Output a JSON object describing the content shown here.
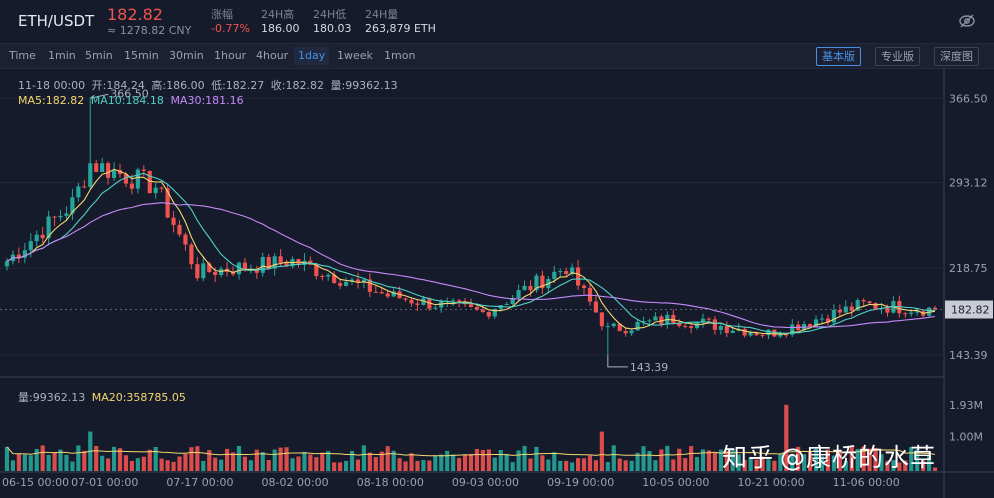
{
  "header": {
    "pair": "ETH/USDT",
    "price": "182.82",
    "cny": "≈ 1278.82 CNY",
    "stats": [
      {
        "label": "涨幅",
        "value": "-0.77%",
        "negative": true
      },
      {
        "label": "24H高",
        "value": "186.00",
        "negative": false
      },
      {
        "label": "24H低",
        "value": "180.03",
        "negative": false
      },
      {
        "label": "24H量",
        "value": "263,879 ETH",
        "negative": false
      }
    ]
  },
  "toolbar": {
    "timeframes": [
      "Time",
      "1min",
      "5min",
      "15min",
      "30min",
      "1hour",
      "4hour",
      "1day",
      "1week",
      "1mon"
    ],
    "active_timeframe": "1day",
    "views": [
      "基本版",
      "专业版",
      "深度图"
    ],
    "active_view": "基本版"
  },
  "ohlc": {
    "date": "11-18 00:00",
    "open_label": "开:184.24",
    "high_label": "高:186.00",
    "low_label": "低:182.27",
    "close_label": "收:182.82",
    "vol_label": "量:99362.13"
  },
  "ma": {
    "ma5": "MA5:182.82",
    "ma10": "MA10:184.18",
    "ma30": "MA30:181.16"
  },
  "volume_info": {
    "vol": "量:99362.13",
    "ma20": "MA20:358785.05"
  },
  "price_axis": [
    "366.50",
    "293.12",
    "218.75",
    "143.39"
  ],
  "current_price_tag": "182.82",
  "high_marker": "366.50",
  "low_marker": "143.39",
  "volume_axis": [
    "1.93M",
    "1.00M"
  ],
  "date_axis": [
    "06-15 00:00",
    "07-01 00:00",
    "07-17 00:00",
    "08-02 00:00",
    "08-18 00:00",
    "09-03 00:00",
    "09-19 00:00",
    "10-05 00:00",
    "10-21 00:00",
    "11-06 00:00"
  ],
  "watermark": [
    "知乎",
    "@康桥的水草"
  ],
  "colors": {
    "up": "#26a69a",
    "down": "#ef5350",
    "ma5": "#f5d76e",
    "ma10": "#4fd1c5",
    "ma30": "#c58af9",
    "accent": "#4a90e2"
  },
  "chart_data": {
    "type": "candlestick",
    "interval": "1day",
    "y_ticks": [
      366.5,
      293.12,
      218.75,
      143.39
    ],
    "ylim": [
      125,
      385
    ],
    "volume_ylim": [
      0,
      2100000
    ],
    "key_points": [
      {
        "date": "06-15",
        "close": 225
      },
      {
        "date": "06-26",
        "close": 275
      },
      {
        "date": "06-29",
        "high": 366.5,
        "close": 310
      },
      {
        "date": "07-10",
        "close": 290
      },
      {
        "date": "07-17",
        "close": 215
      },
      {
        "date": "08-02",
        "close": 225
      },
      {
        "date": "08-18",
        "close": 195
      },
      {
        "date": "09-03",
        "close": 180
      },
      {
        "date": "09-17",
        "close": 220
      },
      {
        "date": "09-24",
        "low": 143.39,
        "close": 165
      },
      {
        "date": "10-05",
        "close": 175
      },
      {
        "date": "10-21",
        "close": 162
      },
      {
        "date": "11-06",
        "close": 187
      },
      {
        "date": "11-18",
        "open": 184.24,
        "high": 186.0,
        "low": 182.27,
        "close": 182.82,
        "volume": 99362.13
      }
    ]
  }
}
